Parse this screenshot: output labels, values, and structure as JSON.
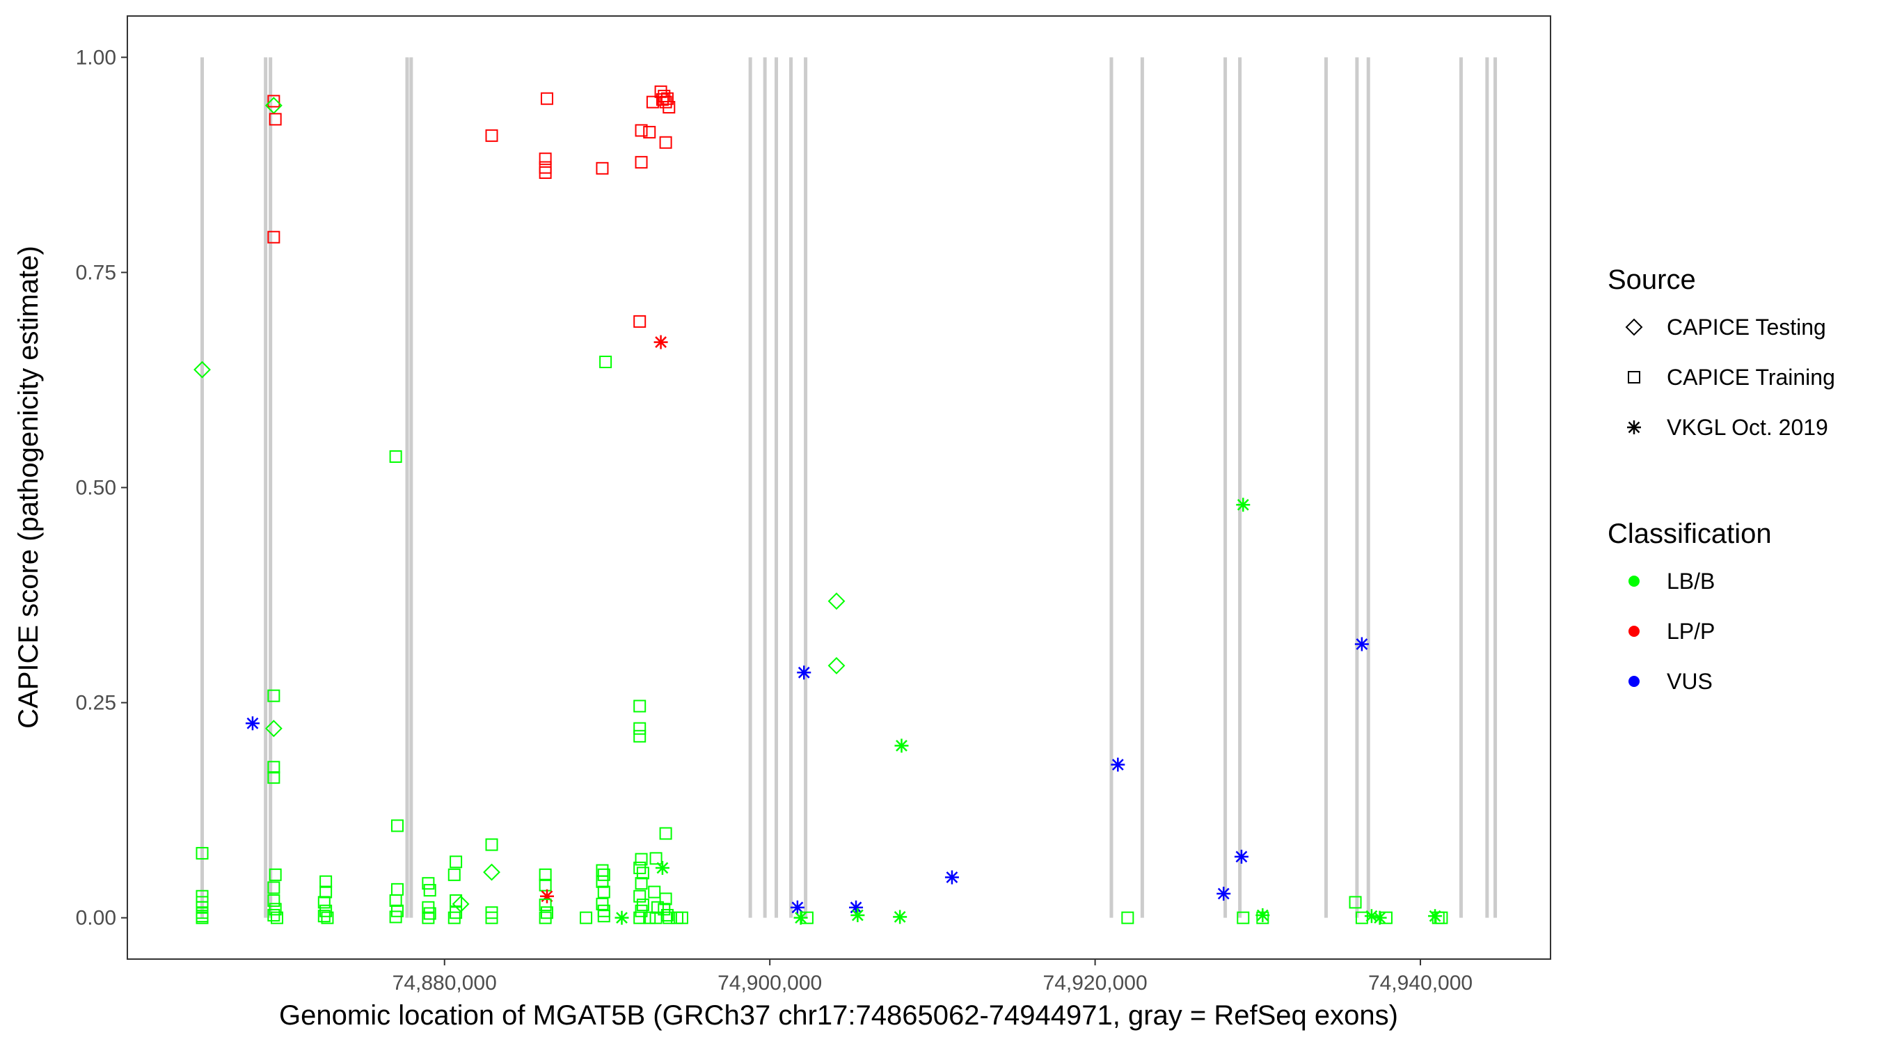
{
  "chart_data": {
    "type": "scatter",
    "xlabel": "Genomic location of MGAT5B (GRCh37 chr17:74865062-74944971, gray = RefSeq exons)",
    "ylabel": "CAPICE score (pathogenicity estimate)",
    "xlim": [
      74860500,
      74948000
    ],
    "ylim": [
      -0.048,
      1.048
    ],
    "x_ticks": [
      74880000,
      74900000,
      74920000,
      74940000
    ],
    "x_tick_labels": [
      "74,880,000",
      "74,900,000",
      "74,920,000",
      "74,940,000"
    ],
    "y_ticks": [
      0,
      0.25,
      0.5,
      0.75,
      1.0
    ],
    "y_tick_labels": [
      "0.00",
      "0.25",
      "0.50",
      "0.75",
      "1.00"
    ],
    "grid": false,
    "exons": [
      74865100,
      74869000,
      74869300,
      74877700,
      74877950,
      74898800,
      74899700,
      74900400,
      74901300,
      74902200,
      74921000,
      74922900,
      74928000,
      74928900,
      74934200,
      74936100,
      74936800,
      74942500,
      74944100,
      74944600
    ],
    "exon_color": "#cccccc",
    "legend_position": "right",
    "legend": {
      "source_title": "Source",
      "sources": [
        {
          "label": "CAPICE Testing",
          "shape": "diamond"
        },
        {
          "label": "CAPICE Training",
          "shape": "square"
        },
        {
          "label": "VKGL Oct. 2019",
          "shape": "asterisk"
        }
      ],
      "class_title": "Classification",
      "classes": [
        {
          "label": "LB/B",
          "color": "#00ff00"
        },
        {
          "label": "LP/P",
          "color": "#ff0000"
        },
        {
          "label": "VUS",
          "color": "#0000ff"
        }
      ]
    },
    "points": [
      {
        "x": 74865100,
        "y": 0.637,
        "src": "diamond",
        "cls": "LB/B"
      },
      {
        "x": 74865100,
        "y": 0.075,
        "src": "square",
        "cls": "LB/B"
      },
      {
        "x": 74865100,
        "y": 0.025,
        "src": "square",
        "cls": "LB/B"
      },
      {
        "x": 74865100,
        "y": 0.018,
        "src": "square",
        "cls": "LB/B"
      },
      {
        "x": 74865100,
        "y": 0.012,
        "src": "square",
        "cls": "LB/B"
      },
      {
        "x": 74865100,
        "y": 0.006,
        "src": "square",
        "cls": "LB/B"
      },
      {
        "x": 74865100,
        "y": 0.002,
        "src": "square",
        "cls": "LB/B"
      },
      {
        "x": 74865100,
        "y": 0.0,
        "src": "square",
        "cls": "LB/B"
      },
      {
        "x": 74868200,
        "y": 0.226,
        "src": "asterisk",
        "cls": "VUS"
      },
      {
        "x": 74869500,
        "y": 0.949,
        "src": "square",
        "cls": "LP/P"
      },
      {
        "x": 74869500,
        "y": 0.944,
        "src": "diamond",
        "cls": "LB/B"
      },
      {
        "x": 74869600,
        "y": 0.928,
        "src": "square",
        "cls": "LP/P"
      },
      {
        "x": 74869500,
        "y": 0.791,
        "src": "square",
        "cls": "LP/P"
      },
      {
        "x": 74869500,
        "y": 0.258,
        "src": "square",
        "cls": "LB/B"
      },
      {
        "x": 74869500,
        "y": 0.22,
        "src": "diamond",
        "cls": "LB/B"
      },
      {
        "x": 74869500,
        "y": 0.175,
        "src": "square",
        "cls": "LB/B"
      },
      {
        "x": 74869500,
        "y": 0.163,
        "src": "square",
        "cls": "LB/B"
      },
      {
        "x": 74869600,
        "y": 0.05,
        "src": "square",
        "cls": "LB/B"
      },
      {
        "x": 74869500,
        "y": 0.035,
        "src": "square",
        "cls": "LB/B"
      },
      {
        "x": 74869500,
        "y": 0.02,
        "src": "square",
        "cls": "LB/B"
      },
      {
        "x": 74869600,
        "y": 0.01,
        "src": "square",
        "cls": "LB/B"
      },
      {
        "x": 74869500,
        "y": 0.003,
        "src": "square",
        "cls": "LB/B"
      },
      {
        "x": 74869700,
        "y": 0.0,
        "src": "square",
        "cls": "LB/B"
      },
      {
        "x": 74872700,
        "y": 0.042,
        "src": "square",
        "cls": "LB/B"
      },
      {
        "x": 74872700,
        "y": 0.03,
        "src": "square",
        "cls": "LB/B"
      },
      {
        "x": 74872600,
        "y": 0.018,
        "src": "square",
        "cls": "LB/B"
      },
      {
        "x": 74872700,
        "y": 0.008,
        "src": "square",
        "cls": "LB/B"
      },
      {
        "x": 74872600,
        "y": 0.002,
        "src": "square",
        "cls": "LB/B"
      },
      {
        "x": 74872800,
        "y": 0.0,
        "src": "square",
        "cls": "LB/B"
      },
      {
        "x": 74877000,
        "y": 0.536,
        "src": "square",
        "cls": "LB/B"
      },
      {
        "x": 74877100,
        "y": 0.107,
        "src": "square",
        "cls": "LB/B"
      },
      {
        "x": 74877100,
        "y": 0.033,
        "src": "square",
        "cls": "LB/B"
      },
      {
        "x": 74877000,
        "y": 0.02,
        "src": "square",
        "cls": "LB/B"
      },
      {
        "x": 74877100,
        "y": 0.008,
        "src": "square",
        "cls": "LB/B"
      },
      {
        "x": 74877000,
        "y": 0.001,
        "src": "square",
        "cls": "LB/B"
      },
      {
        "x": 74879000,
        "y": 0.04,
        "src": "square",
        "cls": "LB/B"
      },
      {
        "x": 74879100,
        "y": 0.032,
        "src": "square",
        "cls": "LB/B"
      },
      {
        "x": 74879000,
        "y": 0.012,
        "src": "square",
        "cls": "LB/B"
      },
      {
        "x": 74879100,
        "y": 0.005,
        "src": "square",
        "cls": "LB/B"
      },
      {
        "x": 74879000,
        "y": 0.0,
        "src": "square",
        "cls": "LB/B"
      },
      {
        "x": 74880700,
        "y": 0.065,
        "src": "square",
        "cls": "LB/B"
      },
      {
        "x": 74880600,
        "y": 0.05,
        "src": "square",
        "cls": "LB/B"
      },
      {
        "x": 74880700,
        "y": 0.02,
        "src": "square",
        "cls": "LB/B"
      },
      {
        "x": 74881000,
        "y": 0.016,
        "src": "diamond",
        "cls": "LB/B"
      },
      {
        "x": 74880700,
        "y": 0.006,
        "src": "square",
        "cls": "LB/B"
      },
      {
        "x": 74880600,
        "y": 0.0,
        "src": "square",
        "cls": "LB/B"
      },
      {
        "x": 74882900,
        "y": 0.909,
        "src": "square",
        "cls": "LP/P"
      },
      {
        "x": 74882900,
        "y": 0.085,
        "src": "square",
        "cls": "LB/B"
      },
      {
        "x": 74882900,
        "y": 0.053,
        "src": "diamond",
        "cls": "LB/B"
      },
      {
        "x": 74882900,
        "y": 0.006,
        "src": "square",
        "cls": "LB/B"
      },
      {
        "x": 74882900,
        "y": 0.0,
        "src": "square",
        "cls": "LB/B"
      },
      {
        "x": 74886300,
        "y": 0.952,
        "src": "square",
        "cls": "LP/P"
      },
      {
        "x": 74886200,
        "y": 0.882,
        "src": "square",
        "cls": "LP/P"
      },
      {
        "x": 74886200,
        "y": 0.872,
        "src": "square",
        "cls": "LP/P"
      },
      {
        "x": 74886200,
        "y": 0.866,
        "src": "square",
        "cls": "LP/P"
      },
      {
        "x": 74886200,
        "y": 0.05,
        "src": "square",
        "cls": "LB/B"
      },
      {
        "x": 74886200,
        "y": 0.038,
        "src": "square",
        "cls": "LB/B"
      },
      {
        "x": 74886300,
        "y": 0.025,
        "src": "asterisk",
        "cls": "LP/P"
      },
      {
        "x": 74886200,
        "y": 0.015,
        "src": "square",
        "cls": "LB/B"
      },
      {
        "x": 74886300,
        "y": 0.006,
        "src": "square",
        "cls": "LB/B"
      },
      {
        "x": 74886200,
        "y": 0.0,
        "src": "square",
        "cls": "LB/B"
      },
      {
        "x": 74888700,
        "y": 0.0,
        "src": "square",
        "cls": "LB/B"
      },
      {
        "x": 74889700,
        "y": 0.871,
        "src": "square",
        "cls": "LP/P"
      },
      {
        "x": 74889900,
        "y": 0.646,
        "src": "square",
        "cls": "LB/B"
      },
      {
        "x": 74889700,
        "y": 0.055,
        "src": "square",
        "cls": "LB/B"
      },
      {
        "x": 74889800,
        "y": 0.05,
        "src": "square",
        "cls": "LB/B"
      },
      {
        "x": 74889700,
        "y": 0.042,
        "src": "square",
        "cls": "LB/B"
      },
      {
        "x": 74889800,
        "y": 0.03,
        "src": "square",
        "cls": "LB/B"
      },
      {
        "x": 74889700,
        "y": 0.016,
        "src": "square",
        "cls": "LB/B"
      },
      {
        "x": 74889800,
        "y": 0.008,
        "src": "square",
        "cls": "LB/B"
      },
      {
        "x": 74889800,
        "y": 0.002,
        "src": "square",
        "cls": "LB/B"
      },
      {
        "x": 74890900,
        "y": 0.0,
        "src": "asterisk",
        "cls": "LB/B"
      },
      {
        "x": 74892100,
        "y": 0.915,
        "src": "square",
        "cls": "LP/P"
      },
      {
        "x": 74892600,
        "y": 0.913,
        "src": "square",
        "cls": "LP/P"
      },
      {
        "x": 74892100,
        "y": 0.878,
        "src": "square",
        "cls": "LP/P"
      },
      {
        "x": 74892000,
        "y": 0.693,
        "src": "square",
        "cls": "LP/P"
      },
      {
        "x": 74892000,
        "y": 0.246,
        "src": "square",
        "cls": "LB/B"
      },
      {
        "x": 74892000,
        "y": 0.22,
        "src": "square",
        "cls": "LB/B"
      },
      {
        "x": 74892000,
        "y": 0.211,
        "src": "square",
        "cls": "LB/B"
      },
      {
        "x": 74892100,
        "y": 0.068,
        "src": "square",
        "cls": "LB/B"
      },
      {
        "x": 74892000,
        "y": 0.058,
        "src": "square",
        "cls": "LB/B"
      },
      {
        "x": 74892200,
        "y": 0.052,
        "src": "square",
        "cls": "LB/B"
      },
      {
        "x": 74892100,
        "y": 0.04,
        "src": "square",
        "cls": "LB/B"
      },
      {
        "x": 74892000,
        "y": 0.025,
        "src": "square",
        "cls": "LB/B"
      },
      {
        "x": 74892200,
        "y": 0.015,
        "src": "square",
        "cls": "LB/B"
      },
      {
        "x": 74892100,
        "y": 0.008,
        "src": "square",
        "cls": "LB/B"
      },
      {
        "x": 74892000,
        "y": 0.0,
        "src": "square",
        "cls": "LB/B"
      },
      {
        "x": 74892600,
        "y": 0.0,
        "src": "square",
        "cls": "LB/B"
      },
      {
        "x": 74892800,
        "y": 0.948,
        "src": "square",
        "cls": "LP/P"
      },
      {
        "x": 74893000,
        "y": 0.069,
        "src": "square",
        "cls": "LB/B"
      },
      {
        "x": 74892900,
        "y": 0.03,
        "src": "square",
        "cls": "LB/B"
      },
      {
        "x": 74893100,
        "y": 0.012,
        "src": "square",
        "cls": "LB/B"
      },
      {
        "x": 74893000,
        "y": 0.0,
        "src": "square",
        "cls": "LB/B"
      },
      {
        "x": 74893300,
        "y": 0.96,
        "src": "square",
        "cls": "LP/P"
      },
      {
        "x": 74893500,
        "y": 0.955,
        "src": "square",
        "cls": "LP/P"
      },
      {
        "x": 74893400,
        "y": 0.951,
        "src": "square",
        "cls": "LP/P"
      },
      {
        "x": 74893700,
        "y": 0.952,
        "src": "square",
        "cls": "LP/P"
      },
      {
        "x": 74893600,
        "y": 0.948,
        "src": "square",
        "cls": "LP/P"
      },
      {
        "x": 74893800,
        "y": 0.942,
        "src": "square",
        "cls": "LP/P"
      },
      {
        "x": 74893600,
        "y": 0.901,
        "src": "square",
        "cls": "LP/P"
      },
      {
        "x": 74893300,
        "y": 0.669,
        "src": "asterisk",
        "cls": "LP/P"
      },
      {
        "x": 74893600,
        "y": 0.098,
        "src": "square",
        "cls": "LB/B"
      },
      {
        "x": 74893400,
        "y": 0.058,
        "src": "asterisk",
        "cls": "LB/B"
      },
      {
        "x": 74893600,
        "y": 0.022,
        "src": "square",
        "cls": "LB/B"
      },
      {
        "x": 74893500,
        "y": 0.01,
        "src": "square",
        "cls": "LB/B"
      },
      {
        "x": 74893700,
        "y": 0.003,
        "src": "square",
        "cls": "LB/B"
      },
      {
        "x": 74893800,
        "y": 0.0,
        "src": "square",
        "cls": "LB/B"
      },
      {
        "x": 74894300,
        "y": 0.0,
        "src": "square",
        "cls": "LB/B"
      },
      {
        "x": 74894600,
        "y": 0.0,
        "src": "square",
        "cls": "LB/B"
      },
      {
        "x": 74901700,
        "y": 0.012,
        "src": "asterisk",
        "cls": "VUS"
      },
      {
        "x": 74901900,
        "y": 0.0,
        "src": "asterisk",
        "cls": "LB/B"
      },
      {
        "x": 74902100,
        "y": 0.285,
        "src": "asterisk",
        "cls": "VUS"
      },
      {
        "x": 74902300,
        "y": 0.0,
        "src": "square",
        "cls": "LB/B"
      },
      {
        "x": 74904100,
        "y": 0.368,
        "src": "diamond",
        "cls": "LB/B"
      },
      {
        "x": 74904100,
        "y": 0.293,
        "src": "diamond",
        "cls": "LB/B"
      },
      {
        "x": 74905300,
        "y": 0.012,
        "src": "asterisk",
        "cls": "VUS"
      },
      {
        "x": 74905400,
        "y": 0.003,
        "src": "asterisk",
        "cls": "LB/B"
      },
      {
        "x": 74908100,
        "y": 0.2,
        "src": "asterisk",
        "cls": "LB/B"
      },
      {
        "x": 74908000,
        "y": 0.001,
        "src": "asterisk",
        "cls": "LB/B"
      },
      {
        "x": 74911200,
        "y": 0.047,
        "src": "asterisk",
        "cls": "VUS"
      },
      {
        "x": 74921400,
        "y": 0.178,
        "src": "asterisk",
        "cls": "VUS"
      },
      {
        "x": 74922000,
        "y": 0.0,
        "src": "square",
        "cls": "LB/B"
      },
      {
        "x": 74927900,
        "y": 0.028,
        "src": "asterisk",
        "cls": "VUS"
      },
      {
        "x": 74929000,
        "y": 0.071,
        "src": "asterisk",
        "cls": "VUS"
      },
      {
        "x": 74929100,
        "y": 0.48,
        "src": "asterisk",
        "cls": "LB/B"
      },
      {
        "x": 74929100,
        "y": 0.0,
        "src": "square",
        "cls": "LB/B"
      },
      {
        "x": 74930300,
        "y": 0.003,
        "src": "asterisk",
        "cls": "LB/B"
      },
      {
        "x": 74930300,
        "y": 0.0,
        "src": "square",
        "cls": "LB/B"
      },
      {
        "x": 74936000,
        "y": 0.018,
        "src": "square",
        "cls": "LB/B"
      },
      {
        "x": 74936400,
        "y": 0.318,
        "src": "asterisk",
        "cls": "VUS"
      },
      {
        "x": 74936400,
        "y": 0.0,
        "src": "square",
        "cls": "LB/B"
      },
      {
        "x": 74937000,
        "y": 0.002,
        "src": "asterisk",
        "cls": "LB/B"
      },
      {
        "x": 74937500,
        "y": 0.0,
        "src": "asterisk",
        "cls": "LB/B"
      },
      {
        "x": 74937900,
        "y": 0.0,
        "src": "square",
        "cls": "LB/B"
      },
      {
        "x": 74940900,
        "y": 0.002,
        "src": "asterisk",
        "cls": "LB/B"
      },
      {
        "x": 74941100,
        "y": 0.0,
        "src": "square",
        "cls": "LB/B"
      },
      {
        "x": 74941300,
        "y": 0.0,
        "src": "square",
        "cls": "LB/B"
      }
    ]
  }
}
